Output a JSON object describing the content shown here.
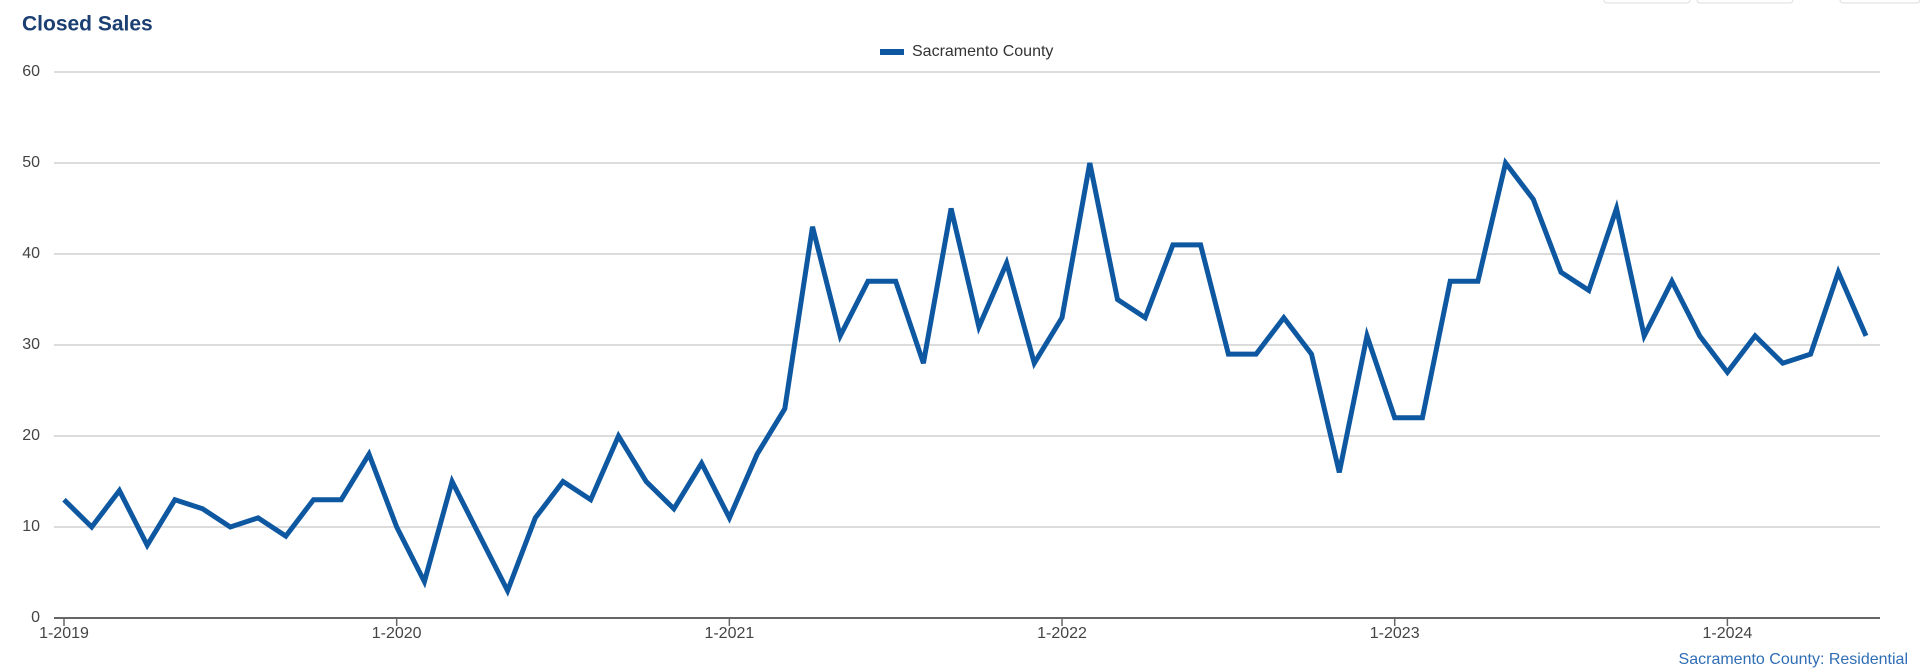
{
  "chart_data": {
    "type": "line",
    "title": "Closed Sales",
    "footer": "Sacramento County: Residential",
    "categories": [
      "1-2019",
      null,
      null,
      null,
      null,
      null,
      null,
      null,
      null,
      null,
      null,
      null,
      "1-2020",
      null,
      null,
      null,
      null,
      null,
      null,
      null,
      null,
      null,
      null,
      null,
      "1-2021",
      null,
      null,
      null,
      null,
      null,
      null,
      null,
      null,
      null,
      null,
      null,
      "1-2022",
      null,
      null,
      null,
      null,
      null,
      null,
      null,
      null,
      null,
      null,
      null,
      "1-2023",
      null,
      null,
      null,
      null,
      null,
      null,
      null,
      null,
      null,
      null,
      null,
      "1-2024",
      null,
      null,
      null,
      null,
      null
    ],
    "series": [
      {
        "name": "Sacramento County",
        "color": "#0e57a1",
        "values": [
          13,
          10,
          14,
          8,
          13,
          12,
          10,
          11,
          9,
          13,
          13,
          18,
          10,
          4,
          15,
          9,
          3,
          11,
          15,
          13,
          20,
          15,
          12,
          17,
          11,
          18,
          23,
          43,
          31,
          37,
          37,
          28,
          45,
          32,
          39,
          28,
          33,
          50,
          35,
          33,
          41,
          41,
          29,
          29,
          33,
          29,
          16,
          31,
          22,
          22,
          37,
          37,
          50,
          46,
          38,
          36,
          45,
          31,
          37,
          31,
          27,
          31,
          28,
          29,
          38,
          31
        ]
      }
    ],
    "ylim": [
      0,
      60
    ],
    "yticks": [
      0,
      10,
      20,
      30,
      40,
      50,
      60
    ],
    "grid": true,
    "legend": "top"
  }
}
